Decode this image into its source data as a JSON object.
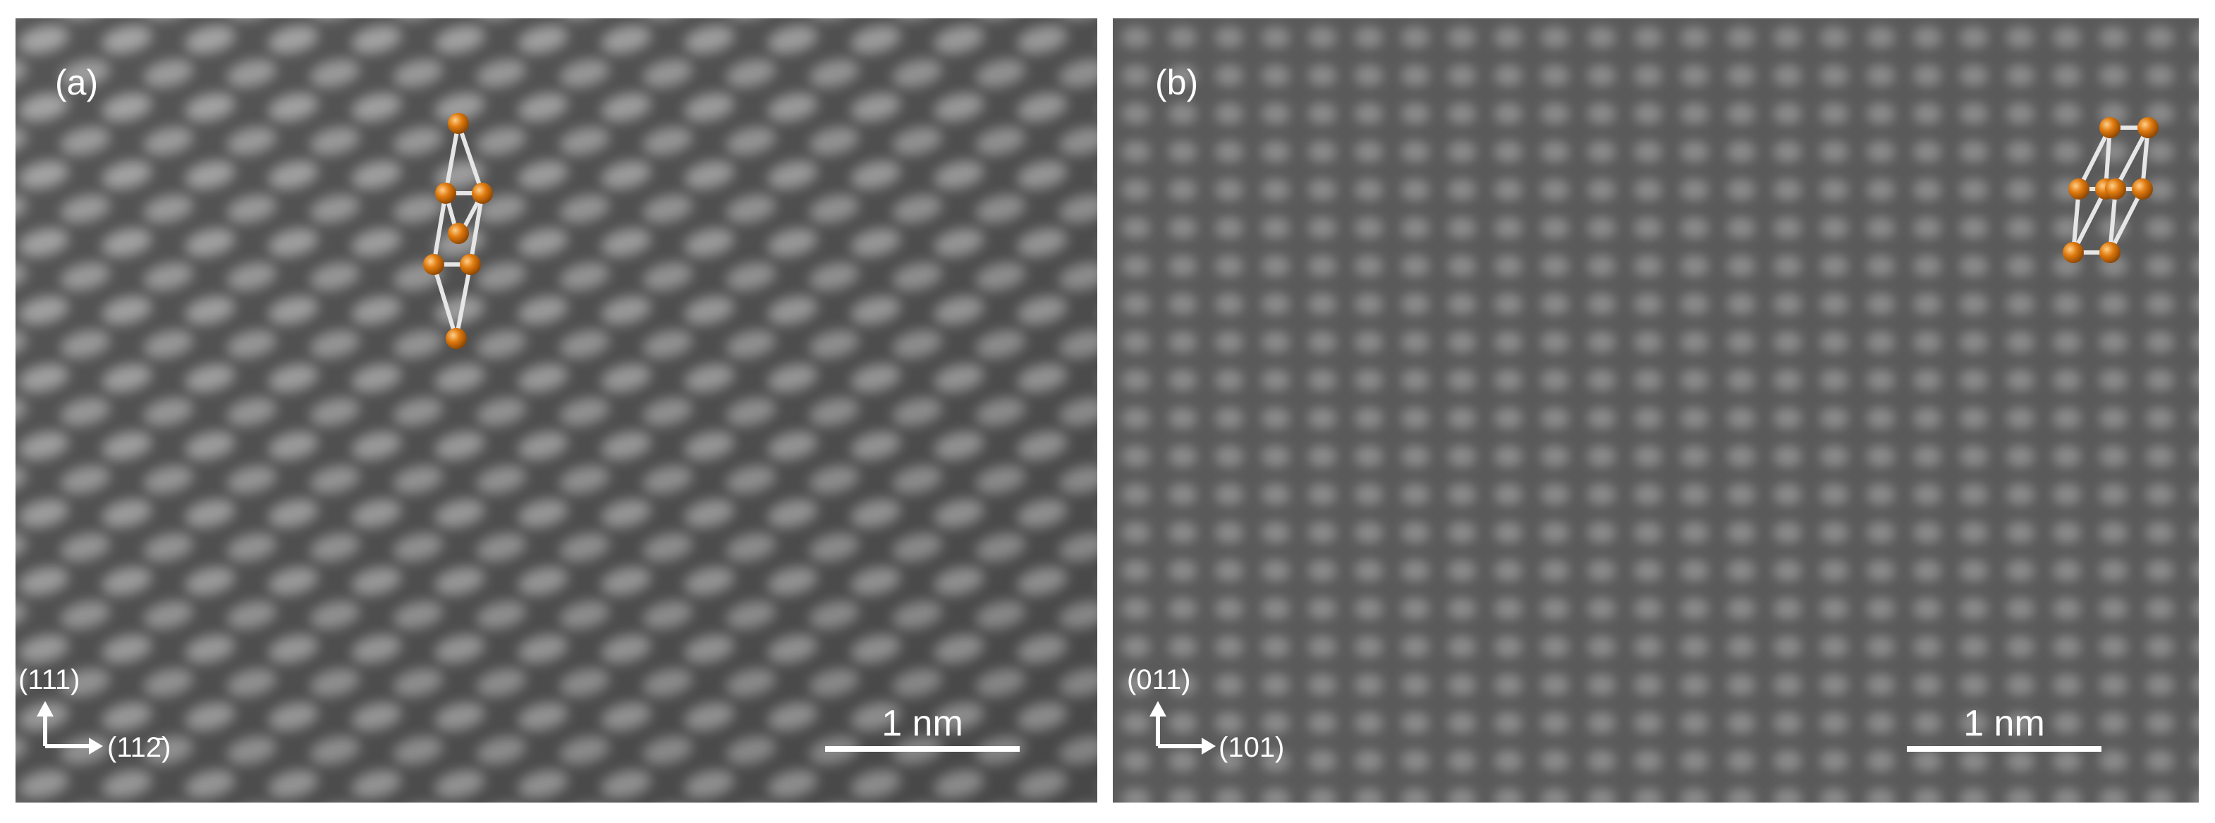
{
  "figure": {
    "panels": [
      {
        "id": "a",
        "label": "(a)",
        "axis_vertical": "(111)",
        "axis_horizontal": "(112̄)",
        "scale_bar_label": "1 nm",
        "lattice_structure": "rhombohedral-unit-cell",
        "atom_color": "#e07b10"
      },
      {
        "id": "b",
        "label": "(b)",
        "axis_vertical": "(011)",
        "axis_horizontal": "(101)",
        "scale_bar_label": "1 nm",
        "lattice_structure": "cubic-unit-cell",
        "atom_color": "#e07b10"
      }
    ]
  }
}
